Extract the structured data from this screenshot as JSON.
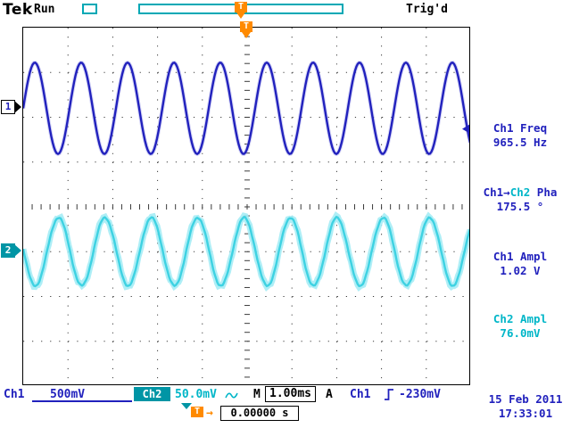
{
  "colors": {
    "ch1": "#2121bd",
    "ch1_halo": "#9a9ae8",
    "ch2_text": "#00b6c8",
    "ch2_box": "#0095a5",
    "ch2_trace": "#3ed2e2",
    "ch2_halo": "#a5ecf5",
    "orange": "#ff8a00",
    "teal_bar": "#00a8b5",
    "grid_dot": "#3a3a3a"
  },
  "header": {
    "brand": "Tek",
    "acq_status": "Run",
    "trigger_status": "Trig'd",
    "trigger_marker": "T"
  },
  "channel_markers": {
    "ch1": "1",
    "ch2": "2"
  },
  "measurements": [
    {
      "label": "Ch1 Freq",
      "value": "965.5 Hz"
    },
    {
      "label_src": "Ch1→",
      "label_ref": "Ch2",
      "label_suffix": " Pha",
      "value": "175.5 °"
    },
    {
      "label": "Ch1 Ampl",
      "value": "1.02 V"
    },
    {
      "label": "Ch2 Ampl",
      "value": "76.0mV"
    }
  ],
  "status_bar": {
    "ch1_label": "Ch1",
    "ch1_scale": "500mV",
    "ch2_label": "Ch2",
    "ch2_scale": "50.0mV",
    "timebase_label": "M",
    "timebase": "1.00ms",
    "trigger_line_label": "A",
    "trigger_source": "Ch1",
    "trigger_level": "-230mV"
  },
  "footer": {
    "trigger_marker": "T",
    "horizontal_position": "0.00000 s",
    "date": "15 Feb 2011",
    "time": "17:33:01"
  },
  "chart_data": {
    "type": "line",
    "title": "Oscilloscope traces Ch1 and Ch2",
    "x_divisions": 10,
    "y_divisions": 8,
    "timebase_s_per_div": 0.001,
    "series": [
      {
        "name": "Ch1",
        "freq_hz": 965.5,
        "ampl_pkpk_v": 1.02,
        "volts_per_div": 0.5,
        "center_div_from_top": 1.8,
        "phase_deg": 0,
        "noisy": false
      },
      {
        "name": "Ch2",
        "freq_hz": 965.5,
        "ampl_pkpk_v": 0.076,
        "volts_per_div": 0.05,
        "center_div_from_top": 5.0,
        "phase_deg": 175.5,
        "noisy": true
      }
    ],
    "trigger": {
      "source": "Ch1",
      "level_v": -0.23,
      "position_frac": 0.5
    }
  }
}
